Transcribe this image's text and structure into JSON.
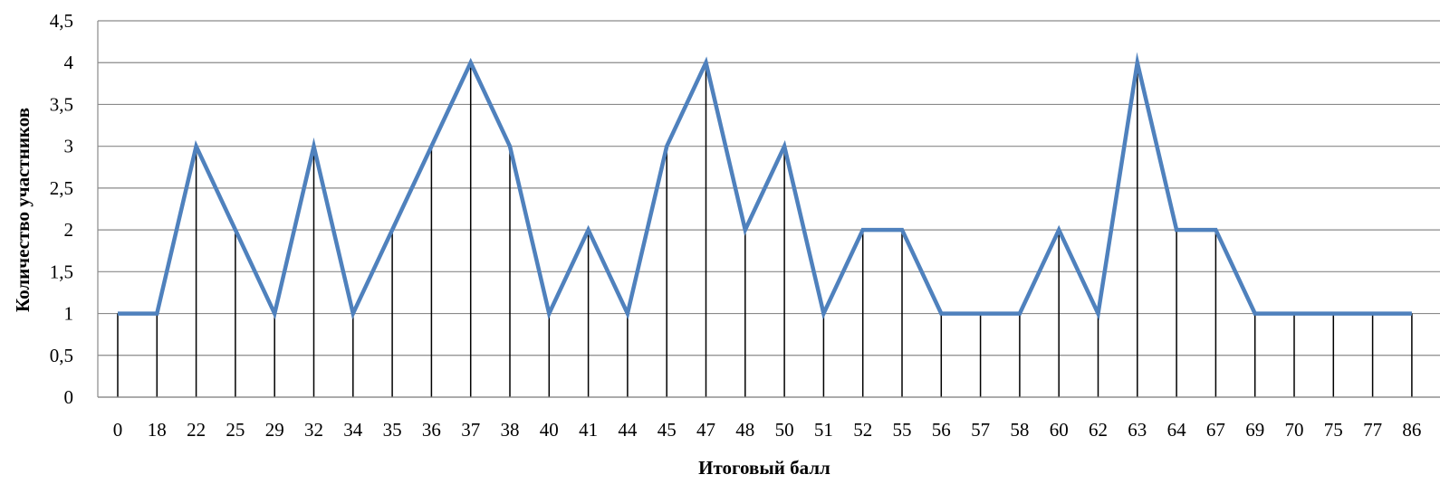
{
  "chart_data": {
    "type": "line",
    "xlabel": "Итоговый балл",
    "ylabel": "Количество участников",
    "ylim": [
      0,
      4.5
    ],
    "y_ticks": [
      "0",
      "0,5",
      "1",
      "1,5",
      "2",
      "2,5",
      "3",
      "3,5",
      "4",
      "4,5"
    ],
    "grid": "horizontal",
    "drop_lines": true,
    "line_color": "#4F81BD",
    "categories": [
      "0",
      "18",
      "22",
      "25",
      "29",
      "32",
      "34",
      "35",
      "36",
      "37",
      "38",
      "40",
      "41",
      "44",
      "45",
      "47",
      "48",
      "50",
      "51",
      "52",
      "55",
      "56",
      "57",
      "58",
      "60",
      "62",
      "63",
      "64",
      "67",
      "69",
      "70",
      "75",
      "77",
      "86"
    ],
    "values": [
      1,
      1,
      3,
      2,
      1,
      3,
      1,
      2,
      3,
      4,
      3,
      1,
      2,
      1,
      3,
      4,
      2,
      3,
      1,
      2,
      2,
      1,
      1,
      1,
      2,
      1,
      4,
      2,
      2,
      1,
      1,
      1,
      1,
      1
    ]
  }
}
